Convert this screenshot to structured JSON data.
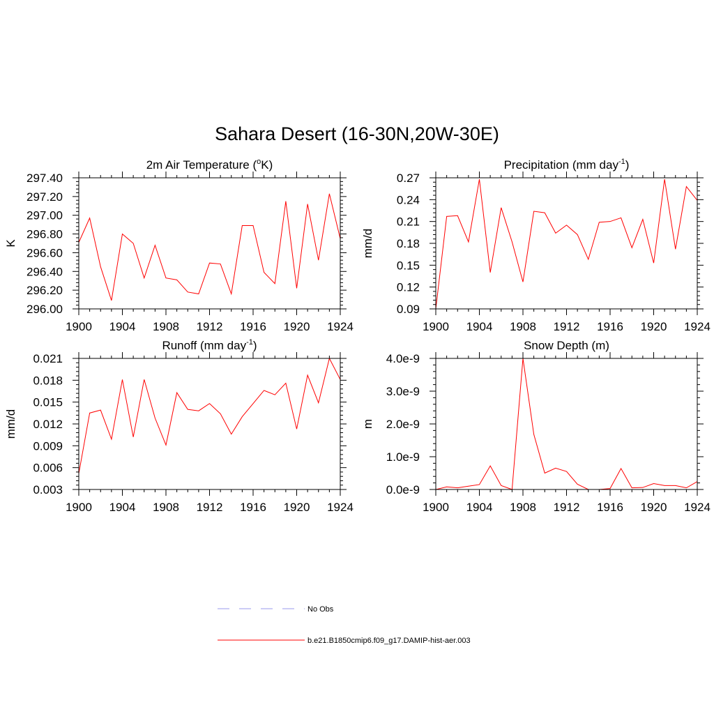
{
  "title": "Sahara Desert (16-30N,20W-30E)",
  "legend": {
    "items": [
      {
        "label": "No Obs",
        "color": "#9999ee",
        "style": "dashed"
      },
      {
        "label": "b.e21.B1850cmip6.f09_g17.DAMIP-hist-aer.003",
        "color": "#ff0000",
        "style": "solid"
      }
    ]
  },
  "chart_data": [
    {
      "type": "line",
      "title": "2m Air Temperature (",
      "title_sup": "o",
      "title_tail": "K)",
      "ylabel": "K",
      "xlim": [
        1900,
        1924
      ],
      "ylim": [
        296.0,
        297.4
      ],
      "xticks": [
        "1900",
        "1904",
        "1908",
        "1912",
        "1916",
        "1920",
        "1924"
      ],
      "yticks": [
        "296.00",
        "296.20",
        "296.40",
        "296.60",
        "296.80",
        "297.00",
        "297.20",
        "297.40"
      ],
      "color": "#ff0000",
      "x": [
        1900,
        1901,
        1902,
        1903,
        1904,
        1905,
        1906,
        1907,
        1908,
        1909,
        1910,
        1911,
        1912,
        1913,
        1914,
        1915,
        1916,
        1917,
        1918,
        1919,
        1920,
        1921,
        1922,
        1923,
        1924
      ],
      "values": [
        296.71,
        296.97,
        296.45,
        296.09,
        296.8,
        296.7,
        296.33,
        296.68,
        296.33,
        296.31,
        296.18,
        296.16,
        296.49,
        296.48,
        296.16,
        296.89,
        296.89,
        296.39,
        296.27,
        297.15,
        296.22,
        297.12,
        296.52,
        297.23,
        296.75
      ]
    },
    {
      "type": "line",
      "title": "Precipitation (mm day",
      "title_sup": "-1",
      "title_tail": ")",
      "ylabel": "mm/d",
      "xlim": [
        1900,
        1924
      ],
      "ylim": [
        0.09,
        0.27
      ],
      "xticks": [
        "1900",
        "1904",
        "1908",
        "1912",
        "1916",
        "1920",
        "1924"
      ],
      "yticks": [
        "0.09",
        "0.12",
        "0.15",
        "0.18",
        "0.21",
        "0.24",
        "0.27"
      ],
      "color": "#ff0000",
      "x": [
        1900,
        1901,
        1902,
        1903,
        1904,
        1905,
        1906,
        1907,
        1908,
        1909,
        1910,
        1911,
        1912,
        1913,
        1914,
        1915,
        1916,
        1917,
        1918,
        1919,
        1920,
        1921,
        1922,
        1923,
        1924
      ],
      "values": [
        0.09,
        0.217,
        0.218,
        0.182,
        0.268,
        0.14,
        0.229,
        0.182,
        0.127,
        0.224,
        0.222,
        0.194,
        0.205,
        0.192,
        0.158,
        0.209,
        0.21,
        0.215,
        0.174,
        0.213,
        0.153,
        0.268,
        0.172,
        0.258,
        0.239
      ]
    },
    {
      "type": "line",
      "title": "Runoff (mm day",
      "title_sup": "-1",
      "title_tail": ")",
      "ylabel": "mm/d",
      "xlim": [
        1900,
        1924
      ],
      "ylim": [
        0.003,
        0.021
      ],
      "xticks": [
        "1900",
        "1904",
        "1908",
        "1912",
        "1916",
        "1920",
        "1924"
      ],
      "yticks": [
        "0.003",
        "0.006",
        "0.009",
        "0.012",
        "0.015",
        "0.018",
        "0.021"
      ],
      "color": "#ff0000",
      "x": [
        1900,
        1901,
        1902,
        1903,
        1904,
        1905,
        1906,
        1907,
        1908,
        1909,
        1910,
        1911,
        1912,
        1913,
        1914,
        1915,
        1916,
        1917,
        1918,
        1919,
        1920,
        1921,
        1922,
        1923,
        1924
      ],
      "values": [
        0.0052,
        0.0135,
        0.0139,
        0.0099,
        0.0181,
        0.0102,
        0.0181,
        0.0128,
        0.0091,
        0.0163,
        0.014,
        0.0138,
        0.0148,
        0.0134,
        0.0106,
        0.013,
        0.0148,
        0.0166,
        0.016,
        0.0176,
        0.0113,
        0.0187,
        0.0149,
        0.021,
        0.0181
      ]
    },
    {
      "type": "line",
      "title": "Snow Depth (m)",
      "title_sup": "",
      "title_tail": "",
      "ylabel": "m",
      "xlim": [
        1900,
        1924
      ],
      "ylim": [
        0.0,
        4e-09
      ],
      "xticks": [
        "1900",
        "1904",
        "1908",
        "1912",
        "1916",
        "1920",
        "1924"
      ],
      "yticks": [
        "0.0e-9",
        "1.0e-9",
        "2.0e-9",
        "3.0e-9",
        "4.0e-9"
      ],
      "color": "#ff0000",
      "x": [
        1900,
        1901,
        1902,
        1903,
        1904,
        1905,
        1906,
        1907,
        1908,
        1909,
        1910,
        1911,
        1912,
        1913,
        1914,
        1915,
        1916,
        1917,
        1918,
        1919,
        1920,
        1921,
        1922,
        1923,
        1924
      ],
      "values": [
        0.0,
        8e-11,
        5e-11,
        1e-10,
        1.5e-10,
        7.2e-10,
        1.2e-10,
        0.0,
        4e-09,
        1.68e-09,
        5e-10,
        6.5e-10,
        5.5e-10,
        1.6e-10,
        0.0,
        0.0,
        3e-11,
        6.4e-10,
        5e-11,
        6e-11,
        1.8e-10,
        1.2e-10,
        1.2e-10,
        5e-11,
        2.4e-10
      ]
    }
  ]
}
